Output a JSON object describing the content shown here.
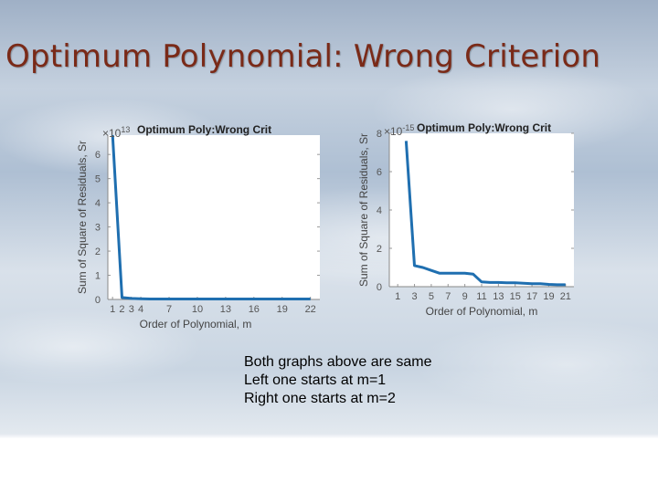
{
  "slide": {
    "title": "Optimum Polynomial: Wrong Criterion",
    "notes": [
      "Both graphs above are same",
      "Left one starts at m=1",
      "Right one starts at m=2"
    ]
  },
  "chart_data": [
    {
      "type": "line",
      "title": "Optimum Poly:Wrong Crit",
      "xlabel": "Order of Polynomial, m",
      "ylabel": "Sum of Square of Residuals, Sr",
      "y_exponent": "×10^13",
      "xlim": [
        0.5,
        23
      ],
      "ylim": [
        0,
        6.8
      ],
      "x_ticks": [
        1,
        2,
        3,
        4,
        7,
        10,
        13,
        16,
        19,
        22
      ],
      "y_ticks": [
        0,
        1,
        2,
        3,
        4,
        5,
        6
      ],
      "grid": false,
      "color": "#1f6fb0",
      "series": [
        {
          "x": [
            1,
            2,
            3,
            4,
            5,
            6,
            7,
            8,
            9,
            10,
            11,
            12,
            13,
            14,
            15,
            16,
            17,
            18,
            19,
            20,
            21,
            22
          ],
          "y": [
            6.8,
            0.08,
            0.04,
            0.03,
            0.02,
            0.02,
            0.02,
            0.02,
            0.02,
            0.02,
            0.02,
            0.02,
            0.02,
            0.02,
            0.02,
            0.02,
            0.02,
            0.02,
            0.02,
            0.02,
            0.02,
            0.02
          ]
        }
      ]
    },
    {
      "type": "line",
      "title": "Optimum Poly:Wrong Crit",
      "xlabel": "Order of Polynomial, m",
      "ylabel": "Sum of Square of Residuals, Sr",
      "y_exponent": "×10^-15",
      "xlim": [
        0,
        22
      ],
      "ylim": [
        0,
        8
      ],
      "x_ticks": [
        1,
        3,
        5,
        7,
        9,
        11,
        13,
        15,
        17,
        19,
        21
      ],
      "y_ticks": [
        0,
        2,
        4,
        6,
        8
      ],
      "grid": false,
      "color": "#1f6fb0",
      "series": [
        {
          "x": [
            2,
            3,
            4,
            5,
            6,
            7,
            8,
            9,
            10,
            11,
            12,
            13,
            14,
            15,
            16,
            17,
            18,
            19,
            20,
            21
          ],
          "y": [
            7.6,
            1.1,
            1.0,
            0.85,
            0.7,
            0.7,
            0.7,
            0.7,
            0.65,
            0.25,
            0.22,
            0.22,
            0.2,
            0.2,
            0.18,
            0.15,
            0.15,
            0.12,
            0.1,
            0.1
          ]
        }
      ]
    }
  ]
}
